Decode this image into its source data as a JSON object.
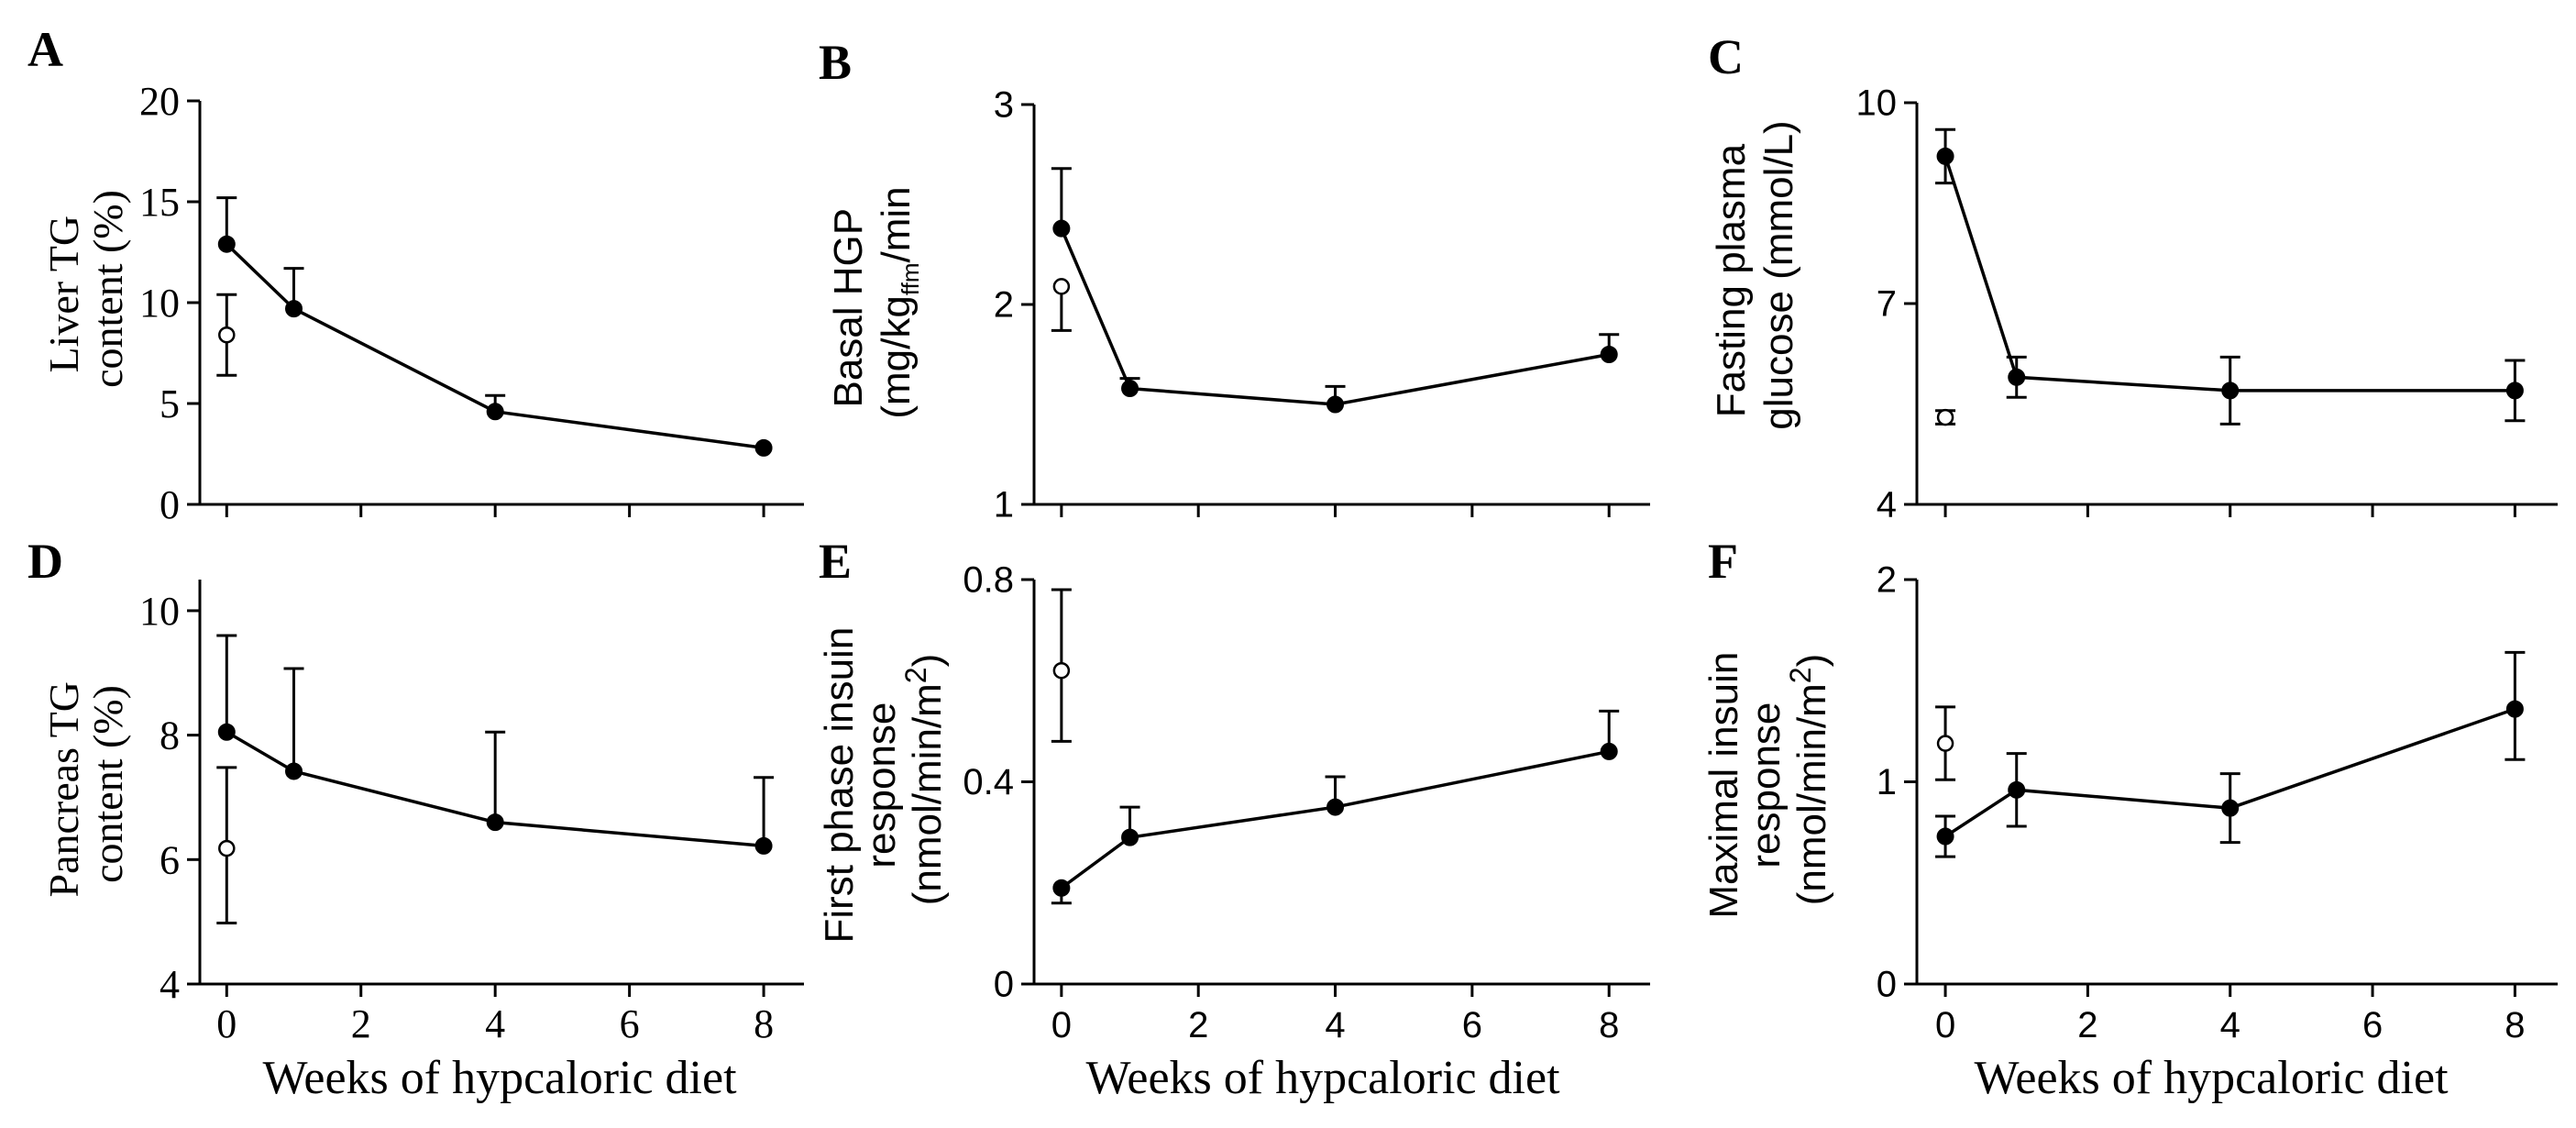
{
  "figure": {
    "xlabel": "Weeks of hypcaloric diet",
    "xticks": [
      0,
      2,
      4,
      6,
      8
    ],
    "xlim": [
      -0.4,
      8.6
    ]
  },
  "chart_data": [
    {
      "type": "line",
      "letter": "A",
      "ylabel_lines": [
        "Liver TG",
        "content (%)"
      ],
      "ylim": [
        0,
        20
      ],
      "yticks": [
        0,
        5,
        10,
        15,
        20
      ],
      "series": [
        {
          "name": "filled",
          "x": [
            0,
            1,
            4,
            8
          ],
          "values": [
            12.9,
            9.7,
            4.6,
            2.8
          ],
          "err_up": [
            2.3,
            2.0,
            0.8,
            0
          ],
          "err_down": [
            0,
            0,
            0,
            0
          ]
        },
        {
          "name": "open",
          "x": [
            0
          ],
          "values": [
            8.4
          ],
          "err_up": [
            2.0
          ],
          "err_down": [
            2.0
          ]
        }
      ]
    },
    {
      "type": "line",
      "letter": "B",
      "ylabel_lines": [
        "Basal HGP",
        "(mg/kg",
        "ffm",
        "/min"
      ],
      "ylim": [
        1,
        3
      ],
      "yticks": [
        1,
        2,
        3
      ],
      "series": [
        {
          "name": "filled",
          "x": [
            0,
            1,
            4,
            8
          ],
          "values": [
            2.38,
            1.58,
            1.5,
            1.75
          ],
          "err_up": [
            0.3,
            0.05,
            0.09,
            0.1
          ],
          "err_down": [
            0,
            0,
            0,
            0
          ]
        },
        {
          "name": "open",
          "x": [
            0
          ],
          "values": [
            2.09
          ],
          "err_up": [
            0
          ],
          "err_down": [
            0.22
          ]
        }
      ]
    },
    {
      "type": "line",
      "letter": "C",
      "ylabel_lines": [
        "Fasting plasma",
        "glucose (mmol/L)"
      ],
      "ylim": [
        4,
        10
      ],
      "yticks": [
        4,
        7,
        10
      ],
      "series": [
        {
          "name": "filled",
          "x": [
            0,
            1,
            4,
            8
          ],
          "values": [
            9.2,
            5.9,
            5.7,
            5.7
          ],
          "err_up": [
            0.4,
            0.3,
            0.5,
            0.45
          ],
          "err_down": [
            0.4,
            0.3,
            0.5,
            0.45
          ]
        },
        {
          "name": "open",
          "x": [
            0
          ],
          "values": [
            5.3
          ],
          "err_up": [
            0.1
          ],
          "err_down": [
            0.1
          ]
        }
      ]
    },
    {
      "type": "line",
      "letter": "D",
      "ylabel_lines": [
        "Pancreas TG",
        "content (%)"
      ],
      "ylim": [
        4,
        10.5
      ],
      "yticks": [
        4,
        6,
        8,
        10
      ],
      "series": [
        {
          "name": "filled",
          "x": [
            0,
            1,
            4,
            8
          ],
          "values": [
            8.05,
            7.42,
            6.6,
            6.22
          ],
          "err_up": [
            1.55,
            1.65,
            1.45,
            1.1
          ],
          "err_down": [
            0,
            0,
            0,
            0
          ]
        },
        {
          "name": "open",
          "x": [
            0
          ],
          "values": [
            6.18
          ],
          "err_up": [
            1.3
          ],
          "err_down": [
            1.2
          ]
        }
      ]
    },
    {
      "type": "line",
      "letter": "E",
      "ylabel_lines": [
        "First phase insuin",
        "response",
        "(nmol/min/m",
        "2",
        ")"
      ],
      "ylim": [
        0,
        0.8
      ],
      "yticks": [
        0,
        0.4,
        0.8
      ],
      "yticklabels": [
        "0",
        "0.4",
        "0.8"
      ],
      "series": [
        {
          "name": "filled",
          "x": [
            0,
            1,
            4,
            8
          ],
          "values": [
            0.19,
            0.29,
            0.35,
            0.46
          ],
          "err_up": [
            0,
            0.06,
            0.06,
            0.08
          ],
          "err_down": [
            0.03,
            0,
            0,
            0
          ]
        },
        {
          "name": "open",
          "x": [
            0
          ],
          "values": [
            0.62
          ],
          "err_up": [
            0.16
          ],
          "err_down": [
            0.14
          ]
        }
      ]
    },
    {
      "type": "line",
      "letter": "F",
      "ylabel_lines": [
        "Maximal insuin",
        "response",
        "(nmol/min/m",
        "2",
        ")"
      ],
      "ylim": [
        0,
        2
      ],
      "yticks": [
        0,
        1,
        2
      ],
      "series": [
        {
          "name": "filled",
          "x": [
            0,
            1,
            4,
            8
          ],
          "values": [
            0.73,
            0.96,
            0.87,
            1.36
          ],
          "err_up": [
            0.1,
            0.18,
            0.17,
            0.28
          ],
          "err_down": [
            0.1,
            0.18,
            0.17,
            0.25
          ]
        },
        {
          "name": "open",
          "x": [
            0
          ],
          "values": [
            1.19
          ],
          "err_up": [
            0.18
          ],
          "err_down": [
            0.18
          ]
        }
      ]
    }
  ]
}
